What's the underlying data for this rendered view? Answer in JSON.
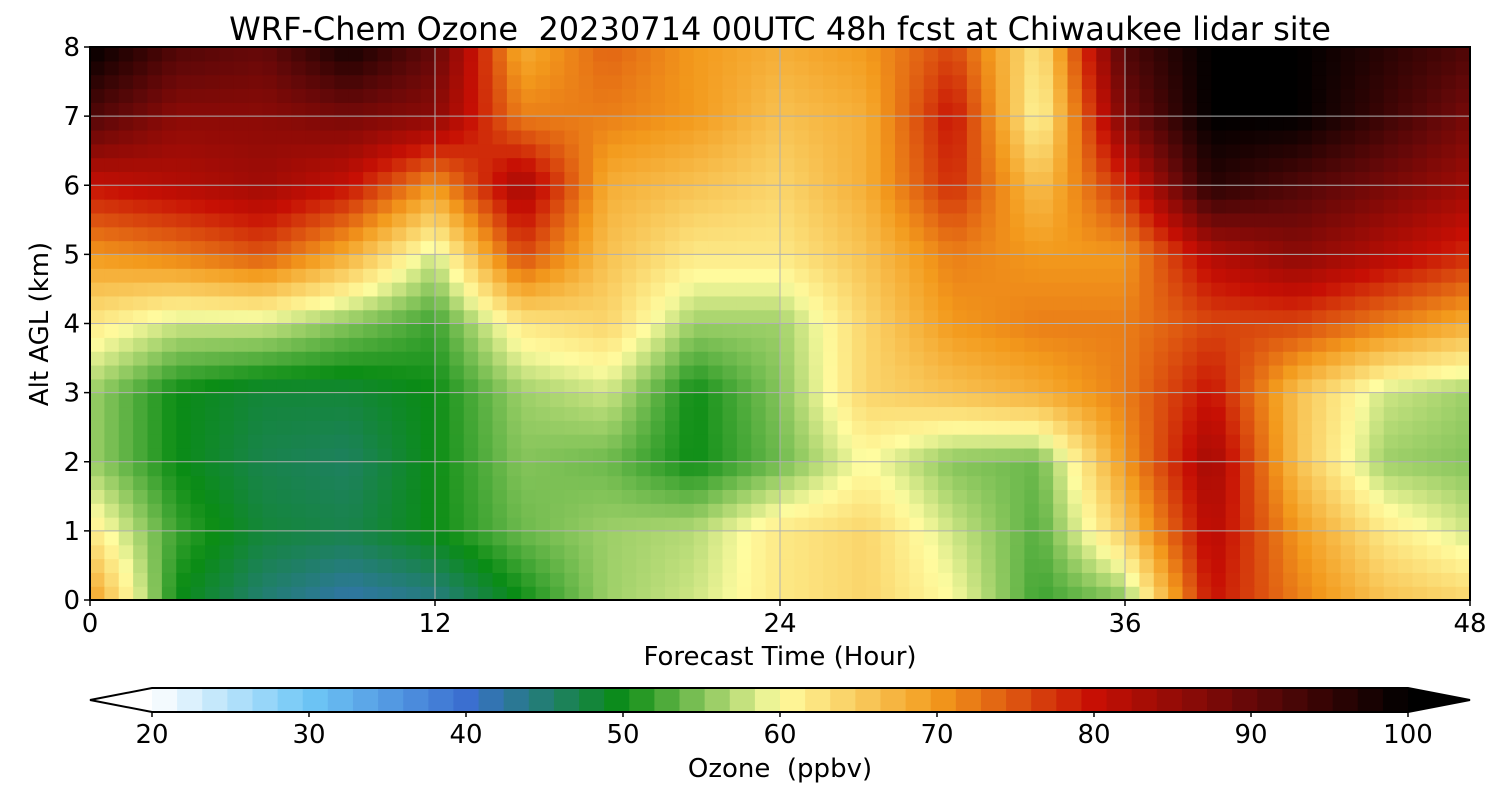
{
  "chart_data": {
    "type": "heatmap",
    "title": "WRF-Chem Ozone  20230714 00UTC 48h fcst at Chiwaukee lidar site",
    "xlabel": "Forecast Time (Hour)",
    "ylabel": "Alt AGL (km)",
    "xlim": [
      0,
      48
    ],
    "ylim": [
      0,
      8
    ],
    "xticks": [
      0,
      12,
      24,
      36,
      48
    ],
    "yticks": [
      0,
      1,
      2,
      3,
      4,
      5,
      6,
      7,
      8
    ],
    "grid": true,
    "x_hours": [
      0,
      3,
      6,
      9,
      12,
      15,
      18,
      21,
      24,
      27,
      30,
      33,
      36,
      39,
      42,
      45,
      48
    ],
    "y_km": [
      0,
      1,
      2,
      3,
      4,
      5,
      6,
      7,
      8
    ],
    "z_ppbv": [
      [
        70,
        50,
        45,
        42,
        44,
        50,
        56,
        58,
        62,
        64,
        60,
        52,
        55,
        80,
        72,
        66,
        64
      ],
      [
        62,
        52,
        48,
        47,
        50,
        54,
        56,
        57,
        62,
        64,
        58,
        53,
        65,
        82,
        70,
        62,
        58
      ],
      [
        56,
        50,
        47,
        46,
        50,
        55,
        54,
        50,
        54,
        60,
        55,
        54,
        70,
        84,
        66,
        56,
        55
      ],
      [
        56,
        50,
        48,
        48,
        50,
        56,
        58,
        50,
        55,
        64,
        66,
        68,
        72,
        80,
        66,
        58,
        56
      ],
      [
        62,
        58,
        58,
        55,
        52,
        62,
        64,
        56,
        56,
        64,
        70,
        72,
        72,
        76,
        76,
        72,
        68
      ],
      [
        70,
        72,
        75,
        68,
        58,
        76,
        66,
        62,
        62,
        66,
        72,
        70,
        70,
        82,
        86,
        82,
        78
      ],
      [
        80,
        82,
        84,
        80,
        70,
        84,
        68,
        66,
        64,
        68,
        78,
        66,
        78,
        96,
        92,
        88,
        84
      ],
      [
        92,
        86,
        86,
        88,
        86,
        72,
        72,
        70,
        66,
        68,
        80,
        60,
        88,
        100,
        100,
        94,
        88
      ],
      [
        100,
        92,
        90,
        98,
        90,
        68,
        74,
        70,
        68,
        70,
        76,
        62,
        92,
        100,
        100,
        96,
        92
      ]
    ],
    "colorbar": {
      "label": "Ozone  (ppbv)",
      "min": 20,
      "max": 100,
      "ticks": [
        20,
        30,
        40,
        50,
        60,
        70,
        80,
        90,
        100
      ],
      "extend": "both",
      "stops": [
        {
          "v": 20,
          "c": "#ffffff"
        },
        {
          "v": 30,
          "c": "#6ec6f6"
        },
        {
          "v": 40,
          "c": "#3b6fd0"
        },
        {
          "v": 50,
          "c": "#0a8c14"
        },
        {
          "v": 60,
          "c": "#fffca0"
        },
        {
          "v": 70,
          "c": "#f39a1c"
        },
        {
          "v": 80,
          "c": "#c70f04"
        },
        {
          "v": 90,
          "c": "#640808"
        },
        {
          "v": 100,
          "c": "#000000"
        }
      ]
    }
  }
}
